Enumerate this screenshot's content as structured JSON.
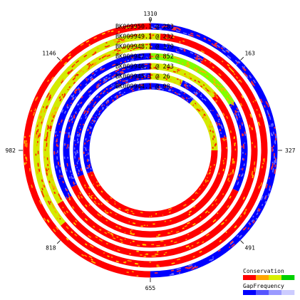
{
  "circle": {
    "ticks": [
      {
        "value": "1310",
        "secondary": "0",
        "angle_deg": 0
      },
      {
        "value": "163",
        "angle_deg": 45
      },
      {
        "value": "327",
        "angle_deg": 90
      },
      {
        "value": "491",
        "angle_deg": 135
      },
      {
        "value": "655",
        "angle_deg": 180
      },
      {
        "value": "818",
        "angle_deg": 225
      },
      {
        "value": "982",
        "angle_deg": 270
      },
      {
        "value": "1146",
        "angle_deg": 315
      }
    ],
    "tracks": [
      {
        "label": "BK009950.1 @ 283"
      },
      {
        "label": "BK009949.1 @ 232"
      },
      {
        "label": "BK009948.1 @ 179"
      },
      {
        "label": "BK009947.1 @ 852"
      },
      {
        "label": "BK009946.1 @ 243"
      },
      {
        "label": "BK009945.1 @ 26"
      },
      {
        "label": "BK009944.1 @ 98"
      }
    ]
  },
  "legend": {
    "conservation_label": "Conservation",
    "gap_label": "GapFrequency",
    "conservation_colors": [
      "#ff0000",
      "#ffa500",
      "#d7ef00",
      "#00d000"
    ],
    "gap_colors": [
      "#0000ff",
      "#5555ff",
      "#9a9aff",
      "#ccccff"
    ]
  },
  "colors": {
    "high": "#ff0000",
    "midhigh": "#ff8c00",
    "mid": "#d4ea00",
    "low": "#7fff00",
    "gap": "#0000ff"
  }
}
